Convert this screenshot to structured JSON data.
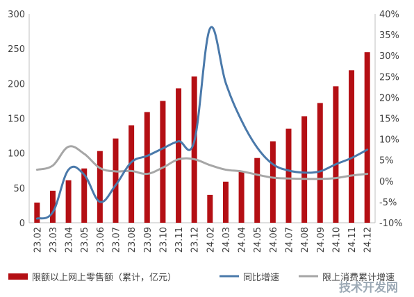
{
  "chart_data": {
    "type": "bar+line",
    "categories": [
      "23.02",
      "23.03",
      "23.04",
      "23.05",
      "23.06",
      "23.07",
      "23.08",
      "23.09",
      "23.10",
      "23.11",
      "23.12",
      "24.02",
      "24.03",
      "24.04",
      "24.05",
      "24.06",
      "24.07",
      "24.08",
      "24.09",
      "24.10",
      "24.11",
      "24.12"
    ],
    "left_axis": {
      "ticks": [
        "0",
        "50",
        "100",
        "150",
        "200",
        "250",
        "300"
      ],
      "ylim": [
        0,
        300
      ]
    },
    "right_axis": {
      "ticks": [
        "-10%",
        "-5%",
        "0%",
        "5%",
        "10%",
        "15%",
        "20%",
        "25%",
        "30%",
        "35%",
        "40%"
      ],
      "ylim": [
        -10,
        40
      ]
    },
    "series": [
      {
        "name": "限额以上网上零售额（累计，亿元）",
        "kind": "bar",
        "axis": "left",
        "color": "#b40f14",
        "values": [
          29,
          46,
          61,
          78,
          103,
          121,
          140,
          159,
          175,
          193,
          210,
          40,
          59,
          74,
          93,
          117,
          135,
          153,
          172,
          196,
          219,
          245
        ]
      },
      {
        "name": "同比增速",
        "kind": "line",
        "axis": "right",
        "color": "#4a79aa",
        "values": [
          -9,
          -7.5,
          2.7,
          1.5,
          -5,
          -1,
          4.5,
          6,
          7.8,
          9.5,
          9.5,
          36.5,
          23.5,
          14.5,
          8,
          4,
          2.5,
          2,
          2.3,
          4,
          5.5,
          7.5
        ]
      },
      {
        "name": "限上消费累计增速",
        "kind": "line",
        "axis": "right",
        "color": "#a6a6a6",
        "values": [
          2.7,
          3.7,
          8.2,
          6.5,
          3.1,
          2.3,
          2.4,
          1.7,
          3.2,
          5.2,
          5.2,
          3.8,
          2.7,
          2.3,
          1.5,
          0.8,
          0.6,
          0.5,
          0.5,
          0.7,
          1.3,
          1.7
        ]
      }
    ]
  },
  "watermark": "技术开发网"
}
